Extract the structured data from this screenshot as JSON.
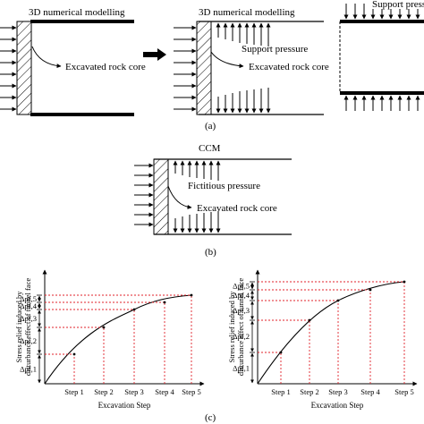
{
  "panel_a": {
    "left_title": "3D numerical modelling",
    "left_core_label": "Excavated rock core",
    "mid_title": "3D numerical modelling",
    "mid_support_label": "Support pressure",
    "mid_core_label": "Excavated rock core",
    "right_label": "Support pressure",
    "caption": "(a)"
  },
  "panel_b": {
    "title": "CCM",
    "fict_label": "Fictitious pressure",
    "core_label": "Excavated rock core",
    "caption": "(b)"
  },
  "panel_c": {
    "caption": "(c)",
    "charts": [
      {
        "ylabel_line1": "Stress relief induced by",
        "ylabel_line2": "disturbance effect of tunnel face",
        "xlabel": "Excavation Step",
        "steps": [
          "Step 1",
          "Step 2",
          "Step 3",
          "Step 4",
          "Step 5"
        ],
        "increments": [
          "Δpf,1",
          "Δpf,2",
          "Δpf,3",
          "Δpf,4",
          "Δpf,5"
        ]
      },
      {
        "ylabel_line1": "Stress relief induced by",
        "ylabel_line2": "disturbance effect of tunnel face",
        "xlabel": "Excavation Step",
        "steps": [
          "Step 1",
          "Step 2",
          "Step 3",
          "Step 4",
          "Step 5"
        ],
        "increments": [
          "Δpf,1",
          "Δpf,2",
          "Δpf,3",
          "Δpf,4",
          "Δpf,5"
        ]
      }
    ]
  },
  "colors": {
    "line": "#000000",
    "guide": "#e0202a"
  }
}
